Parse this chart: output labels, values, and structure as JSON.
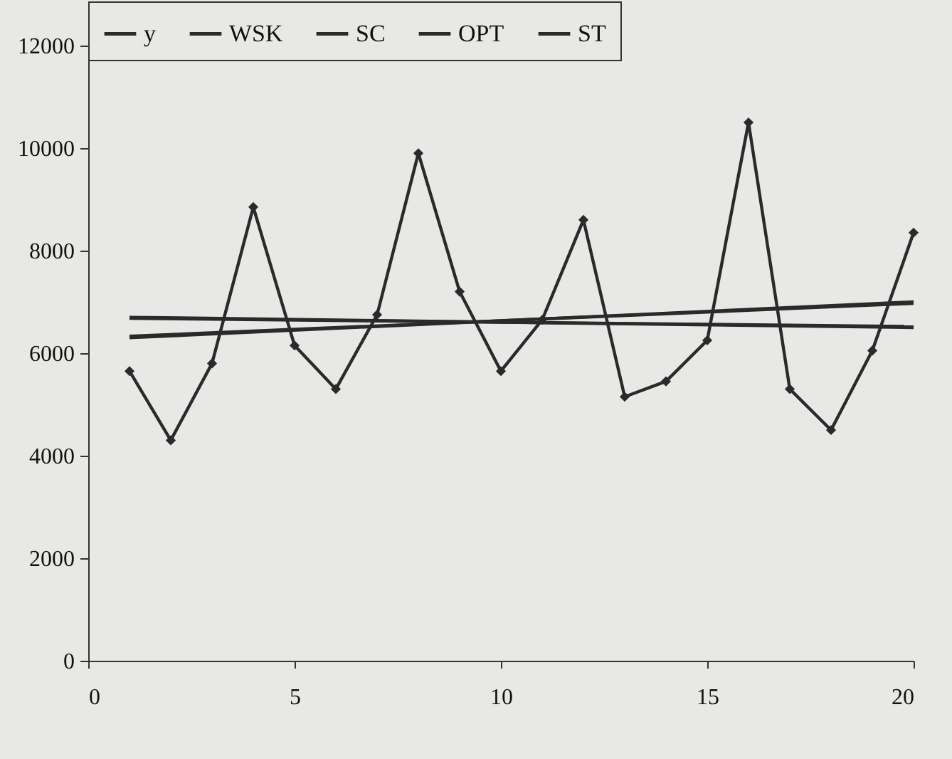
{
  "chart_data": {
    "type": "line",
    "xlim": [
      0,
      20
    ],
    "xticks": [
      0,
      5,
      10,
      15,
      20
    ],
    "ylim": [
      0,
      12000
    ],
    "yticks": [
      0,
      2000,
      4000,
      6000,
      8000,
      10000,
      12000
    ],
    "grid": false,
    "legend": "top",
    "series": [
      {
        "name": "y",
        "color": "#2a2a2a",
        "marker": "diamond",
        "x": [
          1,
          2,
          3,
          4,
          5,
          6,
          7,
          8,
          9,
          10,
          11,
          12,
          13,
          14,
          15,
          16,
          17,
          18,
          19,
          20
        ],
        "values": [
          5650,
          4300,
          5800,
          8850,
          6150,
          5300,
          6750,
          9900,
          7200,
          5650,
          6650,
          8600,
          5150,
          5450,
          6250,
          10500,
          5300,
          4500,
          6050,
          8350
        ]
      },
      {
        "name": "WSK",
        "color": "#2a2a2a",
        "marker": "none",
        "x": [
          1,
          20
        ],
        "values": [
          6300,
          7000
        ]
      },
      {
        "name": "SC",
        "color": "#2a2a2a",
        "marker": "none",
        "x": [
          1,
          20
        ],
        "values": [
          6330,
          6970
        ]
      },
      {
        "name": "OPT",
        "color": "#2a2a2a",
        "marker": "none",
        "x": [
          1,
          20
        ],
        "values": [
          6700,
          6500
        ]
      },
      {
        "name": "ST",
        "color": "#2a2a2a",
        "marker": "none",
        "x": [
          1,
          20
        ],
        "values": [
          6680,
          6520
        ]
      }
    ]
  }
}
